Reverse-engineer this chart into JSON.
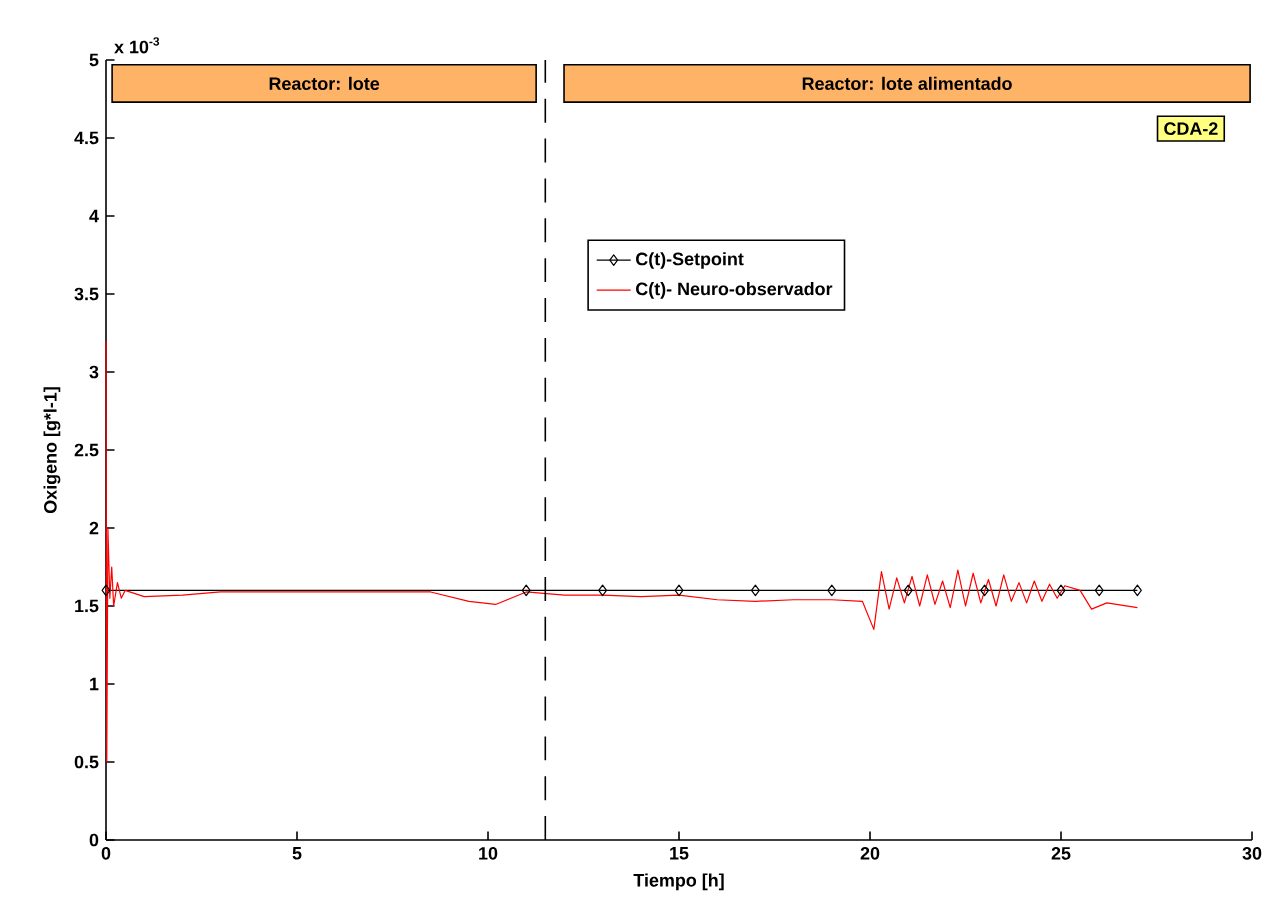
{
  "chart_data": {
    "type": "line",
    "xlabel": "Tiempo [h]",
    "ylabel": "Oxigeno [g*l-1]",
    "xlim": [
      0,
      30
    ],
    "ylim": [
      0,
      5
    ],
    "xticks": [
      0,
      5,
      10,
      15,
      20,
      25,
      30
    ],
    "yticks": [
      0,
      0.5,
      1,
      1.5,
      2,
      2.5,
      3,
      3.5,
      4,
      4.5,
      5
    ],
    "legend": "top",
    "grid": false,
    "line_style": "solid",
    "annotations": [
      "CDA-2",
      "x 10$^{-3}$"
    ],
    "bands": [
      {
        "axis": "x",
        "from": 0.16,
        "to": 11.26,
        "label": "Reactor: lote",
        "color": "#ffb366"
      },
      {
        "axis": "x",
        "from": 11.99,
        "to": 29.95,
        "label": "Reactor: lote alimentado",
        "color": "#ffb366"
      }
    ],
    "ref_lines": [
      {
        "axis": "x",
        "value": 11.5,
        "color": "#000000",
        "line_style": "dashed"
      }
    ],
    "series": [
      {
        "name": "C(t)-Setpoint",
        "color": "#000000",
        "marker": "diamond",
        "x": [
          0,
          11,
          13,
          15,
          17,
          19,
          21,
          23,
          25,
          26,
          27
        ],
        "values": [
          1.6,
          1.6,
          1.6,
          1.6,
          1.6,
          1.6,
          1.6,
          1.6,
          1.6,
          1.6,
          1.6
        ]
      },
      {
        "name": "C(t)- Neuro-observador",
        "color": "#ff0000",
        "marker": "none",
        "x": [
          0,
          0.02,
          0.05,
          0.1,
          0.15,
          0.2,
          0.3,
          0.4,
          0.5,
          1,
          2,
          3,
          4,
          5,
          6,
          7,
          8,
          8.5,
          9.5,
          10.2,
          10.6,
          11,
          12,
          13,
          14,
          15,
          16,
          17,
          18,
          19,
          19.8,
          20.1,
          20.3,
          20.5,
          20.7,
          20.9,
          21.1,
          21.3,
          21.5,
          21.7,
          21.9,
          22.1,
          22.3,
          22.5,
          22.7,
          22.9,
          23.1,
          23.3,
          23.5,
          23.7,
          23.9,
          24.1,
          24.3,
          24.5,
          24.7,
          24.9,
          25.1,
          25.5,
          25.8,
          26.2,
          27
        ],
        "values": [
          3.2,
          0.5,
          2.0,
          1.55,
          1.75,
          1.5,
          1.65,
          1.55,
          1.6,
          1.56,
          1.57,
          1.59,
          1.59,
          1.59,
          1.59,
          1.59,
          1.59,
          1.59,
          1.53,
          1.51,
          1.55,
          1.59,
          1.57,
          1.57,
          1.56,
          1.57,
          1.54,
          1.53,
          1.54,
          1.54,
          1.53,
          1.35,
          1.72,
          1.48,
          1.68,
          1.52,
          1.69,
          1.5,
          1.7,
          1.51,
          1.66,
          1.49,
          1.73,
          1.5,
          1.71,
          1.52,
          1.67,
          1.5,
          1.7,
          1.53,
          1.65,
          1.52,
          1.66,
          1.53,
          1.64,
          1.55,
          1.63,
          1.6,
          1.48,
          1.52,
          1.49
        ]
      }
    ]
  }
}
